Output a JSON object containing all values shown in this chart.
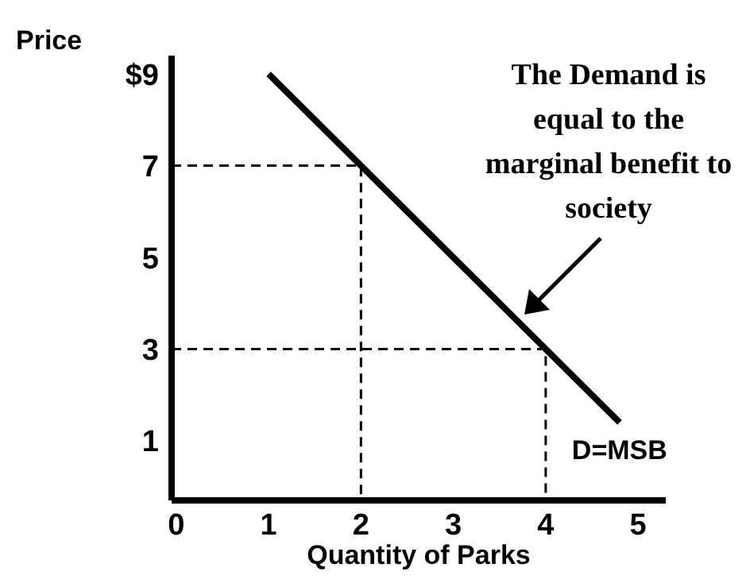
{
  "chart_data": {
    "type": "line",
    "ylabel": "Price",
    "xlabel": "Quantity of Parks",
    "xlim": [
      -0.05,
      5.3
    ],
    "ylim": [
      -0.3,
      9.4
    ],
    "xticks": [
      0,
      1,
      2,
      3,
      4,
      5
    ],
    "yticks": [
      1,
      3,
      5,
      7,
      {
        "value": 9,
        "label": "$9"
      }
    ],
    "marker": "none",
    "series": [
      {
        "color": "#000000",
        "x": [
          1.0,
          4.8
        ],
        "values": [
          9.0,
          1.4
        ],
        "line_style": "solid"
      },
      {
        "color": "#000000",
        "x": [
          -0.05,
          2,
          2
        ],
        "values": [
          7,
          7,
          -0.3
        ],
        "line_style": "dashed"
      },
      {
        "color": "#000000",
        "x": [
          -0.05,
          4,
          4
        ],
        "values": [
          3,
          3,
          -0.3
        ],
        "line_style": "dashed"
      }
    ],
    "annotations": [
      "The Demand is equal to the marginal benefit to society",
      {
        "text": "D=MSB",
        "x": 4.8,
        "y": 1.4
      }
    ]
  }
}
